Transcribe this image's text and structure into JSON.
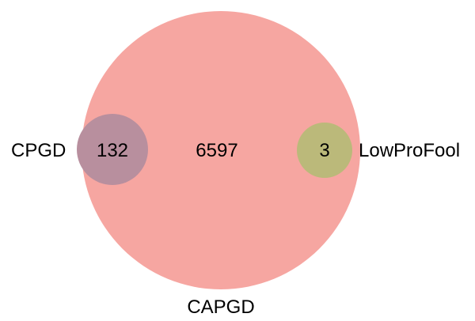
{
  "venn": {
    "sets": [
      {
        "id": "capgd",
        "name": "CAPGD",
        "color": "#f6a6a1"
      },
      {
        "id": "cpgd",
        "name": "CPGD",
        "color": "#b88f9e"
      },
      {
        "id": "lowprofool",
        "name": "LowProFool",
        "color": "#bbb97a"
      }
    ],
    "regions": [
      {
        "id": "capgd-only",
        "value": "6597"
      },
      {
        "id": "cpgd-capgd",
        "value": "132"
      },
      {
        "id": "lowprofool-capgd",
        "value": "3"
      }
    ]
  }
}
